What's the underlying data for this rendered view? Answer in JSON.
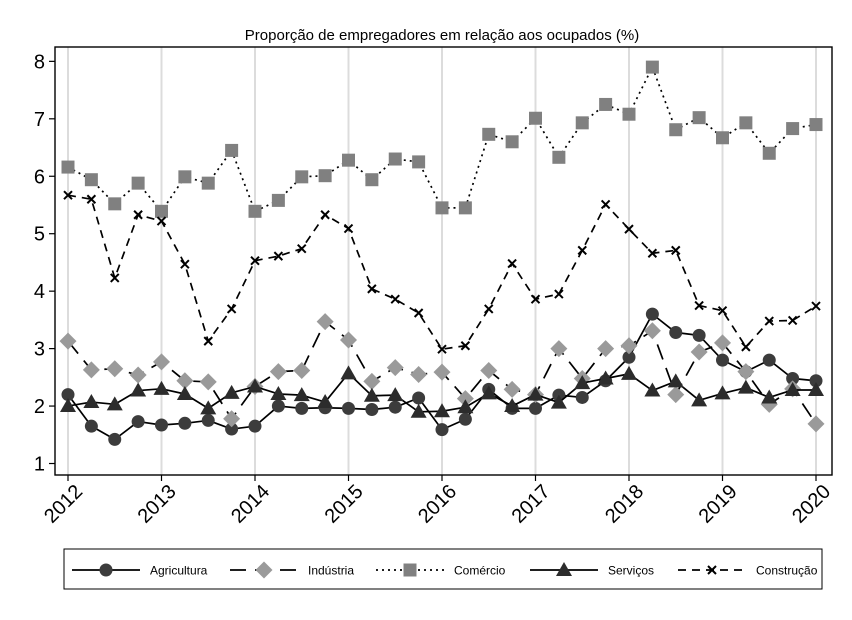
{
  "chart_data": {
    "type": "line",
    "title": "Proporção de empregadores em relação aos ocupados (%)",
    "xlabel": "",
    "ylabel": "",
    "x_ticks": [
      "2012",
      "2013",
      "2014",
      "2015",
      "2016",
      "2017",
      "2018",
      "2019",
      "2020"
    ],
    "y_ticks": [
      "1",
      "2",
      "3",
      "4",
      "5",
      "6",
      "7",
      "8"
    ],
    "xlim": [
      2012,
      2020
    ],
    "ylim": [
      0.8,
      8.25
    ],
    "grid": "vertical",
    "legend_position": "bottom",
    "x": [
      2012,
      2012.25,
      2012.5,
      2012.75,
      2013,
      2013.25,
      2013.5,
      2013.75,
      2014,
      2014.25,
      2014.5,
      2014.75,
      2015,
      2015.25,
      2015.5,
      2015.75,
      2016,
      2016.25,
      2016.5,
      2016.75,
      2017,
      2017.25,
      2017.5,
      2017.75,
      2018,
      2018.25,
      2018.5,
      2018.75,
      2019,
      2019.25,
      2019.5,
      2019.75,
      2020
    ],
    "series": [
      {
        "name": "Agricultura",
        "marker": "circle",
        "dash": "solid",
        "color": "#3c3c3c",
        "values": [
          2.2,
          1.65,
          1.42,
          1.73,
          1.67,
          1.7,
          1.75,
          1.6,
          1.65,
          2.0,
          1.96,
          1.97,
          1.96,
          1.94,
          1.98,
          2.14,
          1.59,
          1.77,
          2.29,
          1.96,
          1.96,
          2.19,
          2.15,
          2.44,
          2.85,
          3.6,
          3.28,
          3.23,
          2.8,
          2.6,
          2.8,
          2.48,
          2.44
        ]
      },
      {
        "name": "Indústria",
        "marker": "diamond",
        "dash": "longdash",
        "color": "#9a9a9a",
        "values": [
          3.13,
          2.63,
          2.65,
          2.54,
          2.77,
          2.44,
          2.42,
          1.78,
          2.34,
          2.6,
          2.62,
          3.47,
          3.15,
          2.43,
          2.67,
          2.55,
          2.59,
          2.13,
          2.62,
          2.29,
          2.2,
          3.0,
          2.48,
          3.0,
          3.05,
          3.31,
          2.2,
          2.94,
          3.1,
          2.6,
          2.03,
          2.3,
          1.69
        ]
      },
      {
        "name": "Comércio",
        "marker": "square",
        "dash": "dot",
        "color": "#808080",
        "values": [
          6.16,
          5.94,
          5.52,
          5.88,
          5.39,
          5.99,
          5.88,
          6.45,
          5.39,
          5.58,
          5.99,
          6.01,
          6.28,
          5.94,
          6.3,
          6.25,
          5.45,
          5.45,
          6.73,
          6.6,
          7.01,
          6.33,
          6.93,
          7.25,
          7.08,
          7.9,
          6.81,
          7.02,
          6.67,
          6.93,
          6.4,
          6.83,
          6.9
        ]
      },
      {
        "name": "Serviços",
        "marker": "triangle",
        "dash": "solid",
        "color": "#2c2c2c",
        "values": [
          2.0,
          2.07,
          2.03,
          2.27,
          2.3,
          2.21,
          1.96,
          2.23,
          2.34,
          2.21,
          2.19,
          2.07,
          2.57,
          2.18,
          2.19,
          1.9,
          1.91,
          1.98,
          2.22,
          2.0,
          2.2,
          2.06,
          2.4,
          2.48,
          2.56,
          2.27,
          2.43,
          2.1,
          2.22,
          2.32,
          2.15,
          2.28,
          2.28
        ]
      },
      {
        "name": "Construção",
        "marker": "x",
        "dash": "dash",
        "color": "#000000",
        "values": [
          5.67,
          5.6,
          4.23,
          5.33,
          5.22,
          4.47,
          3.13,
          3.69,
          4.53,
          4.61,
          4.74,
          5.33,
          5.09,
          4.04,
          3.86,
          3.62,
          2.99,
          3.05,
          3.69,
          4.48,
          3.86,
          3.95,
          4.71,
          5.51,
          5.08,
          4.66,
          4.71,
          3.75,
          3.66,
          3.03,
          3.48,
          3.49,
          3.74
        ]
      }
    ]
  }
}
